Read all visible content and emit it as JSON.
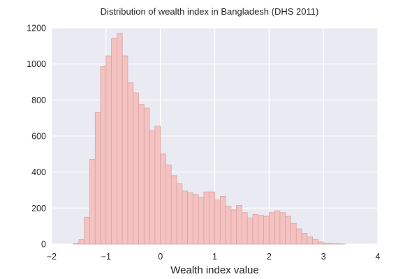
{
  "chart_data": {
    "type": "bar",
    "title": "Distribution of wealth index in Bangladesh (DHS 2011)",
    "xlabel": "Wealth index value",
    "ylabel": "",
    "xlim": [
      -2,
      4
    ],
    "ylim": [
      0,
      1200
    ],
    "x_ticks": [
      "−2",
      "−1",
      "0",
      "1",
      "2",
      "3",
      "4"
    ],
    "x_tick_values": [
      -2,
      -1,
      0,
      1,
      2,
      3,
      4
    ],
    "y_ticks": [
      "0",
      "200",
      "400",
      "600",
      "800",
      "1000",
      "1200"
    ],
    "y_tick_values": [
      0,
      200,
      400,
      600,
      800,
      1000,
      1200
    ],
    "grid": true,
    "bin_width": 0.1,
    "bins": [
      {
        "x0": -1.6,
        "x1": -1.5,
        "count": 3
      },
      {
        "x0": -1.5,
        "x1": -1.4,
        "count": 25
      },
      {
        "x0": -1.4,
        "x1": -1.3,
        "count": 150
      },
      {
        "x0": -1.3,
        "x1": -1.2,
        "count": 470
      },
      {
        "x0": -1.2,
        "x1": -1.1,
        "count": 730
      },
      {
        "x0": -1.1,
        "x1": -1.0,
        "count": 985
      },
      {
        "x0": -1.0,
        "x1": -0.9,
        "count": 1045
      },
      {
        "x0": -0.9,
        "x1": -0.8,
        "count": 1140
      },
      {
        "x0": -0.8,
        "x1": -0.7,
        "count": 1170
      },
      {
        "x0": -0.7,
        "x1": -0.6,
        "count": 1045
      },
      {
        "x0": -0.6,
        "x1": -0.5,
        "count": 895
      },
      {
        "x0": -0.5,
        "x1": -0.4,
        "count": 840
      },
      {
        "x0": -0.4,
        "x1": -0.3,
        "count": 775
      },
      {
        "x0": -0.3,
        "x1": -0.2,
        "count": 755
      },
      {
        "x0": -0.2,
        "x1": -0.1,
        "count": 630
      },
      {
        "x0": -0.1,
        "x1": 0.0,
        "count": 655
      },
      {
        "x0": 0.0,
        "x1": 0.1,
        "count": 500
      },
      {
        "x0": 0.1,
        "x1": 0.2,
        "count": 440
      },
      {
        "x0": 0.2,
        "x1": 0.3,
        "count": 380
      },
      {
        "x0": 0.3,
        "x1": 0.4,
        "count": 335
      },
      {
        "x0": 0.4,
        "x1": 0.5,
        "count": 295
      },
      {
        "x0": 0.5,
        "x1": 0.6,
        "count": 285
      },
      {
        "x0": 0.6,
        "x1": 0.7,
        "count": 275
      },
      {
        "x0": 0.7,
        "x1": 0.8,
        "count": 260
      },
      {
        "x0": 0.8,
        "x1": 0.9,
        "count": 290
      },
      {
        "x0": 0.9,
        "x1": 1.0,
        "count": 290
      },
      {
        "x0": 1.0,
        "x1": 1.1,
        "count": 245
      },
      {
        "x0": 1.1,
        "x1": 1.2,
        "count": 265
      },
      {
        "x0": 1.2,
        "x1": 1.3,
        "count": 210
      },
      {
        "x0": 1.3,
        "x1": 1.4,
        "count": 190
      },
      {
        "x0": 1.4,
        "x1": 1.5,
        "count": 215
      },
      {
        "x0": 1.5,
        "x1": 1.6,
        "count": 175
      },
      {
        "x0": 1.6,
        "x1": 1.7,
        "count": 145
      },
      {
        "x0": 1.7,
        "x1": 1.8,
        "count": 165
      },
      {
        "x0": 1.8,
        "x1": 1.9,
        "count": 160
      },
      {
        "x0": 1.9,
        "x1": 2.0,
        "count": 155
      },
      {
        "x0": 2.0,
        "x1": 2.1,
        "count": 175
      },
      {
        "x0": 2.1,
        "x1": 2.2,
        "count": 185
      },
      {
        "x0": 2.2,
        "x1": 2.3,
        "count": 175
      },
      {
        "x0": 2.3,
        "x1": 2.4,
        "count": 155
      },
      {
        "x0": 2.4,
        "x1": 2.5,
        "count": 115
      },
      {
        "x0": 2.5,
        "x1": 2.6,
        "count": 85
      },
      {
        "x0": 2.6,
        "x1": 2.7,
        "count": 60
      },
      {
        "x0": 2.7,
        "x1": 2.8,
        "count": 40
      },
      {
        "x0": 2.8,
        "x1": 2.9,
        "count": 25
      },
      {
        "x0": 2.9,
        "x1": 3.0,
        "count": 12
      },
      {
        "x0": 3.0,
        "x1": 3.1,
        "count": 6
      },
      {
        "x0": 3.1,
        "x1": 3.2,
        "count": 3
      },
      {
        "x0": 3.2,
        "x1": 3.3,
        "count": 2
      },
      {
        "x0": 3.3,
        "x1": 3.4,
        "count": 1
      }
    ],
    "colors": {
      "background": "#EAEAF2",
      "grid": "#FFFFFF",
      "bar_fill": "#F4C2C0",
      "bar_edge": "#D9A3A1",
      "text": "#262626"
    }
  }
}
